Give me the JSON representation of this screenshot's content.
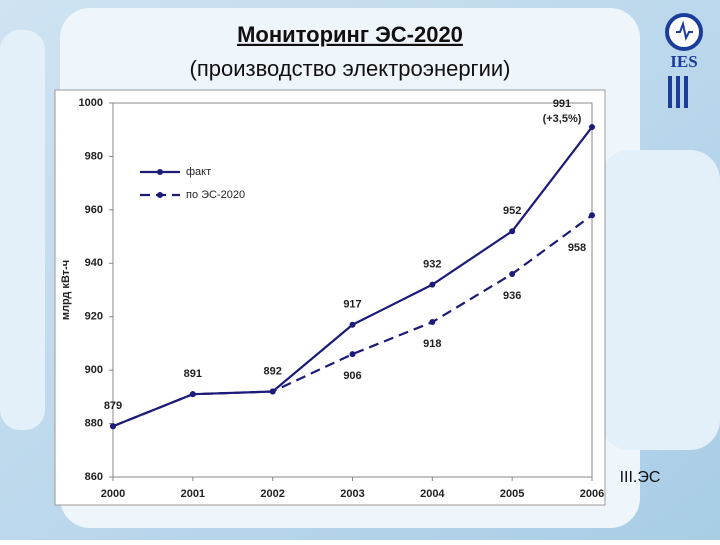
{
  "slide": {
    "logo_text": "IES",
    "footer": "III.ЭС"
  },
  "chart_data": {
    "type": "line",
    "title": "Мониторинг ЭС-2020",
    "subtitle": "(производство электроэнергии)",
    "y_label": "млрд кВт-ч",
    "x": [
      2000,
      2001,
      2002,
      2003,
      2004,
      2005,
      2006
    ],
    "xlim": [
      2000,
      2006
    ],
    "xticks": [
      2000,
      2001,
      2002,
      2003,
      2004,
      2005,
      2006
    ],
    "ylim": [
      860,
      1000
    ],
    "yticks": [
      860,
      880,
      900,
      920,
      940,
      960,
      980,
      1000
    ],
    "grid": false,
    "legend": "upper left",
    "annotations": [
      "(+3,5%)"
    ],
    "series": [
      {
        "name": "факт",
        "color": "#1c1c78",
        "line_style": "solid",
        "values": [
          879,
          891,
          892,
          917,
          932,
          952,
          991
        ]
      },
      {
        "name": "по ЭС-2020",
        "color": "#1c1c78",
        "line_style": "dashed",
        "values": [
          879,
          891,
          892,
          906,
          918,
          936,
          958
        ],
        "value_labels": [
          null,
          null,
          null,
          "906",
          "918",
          "936",
          "958"
        ]
      }
    ]
  }
}
